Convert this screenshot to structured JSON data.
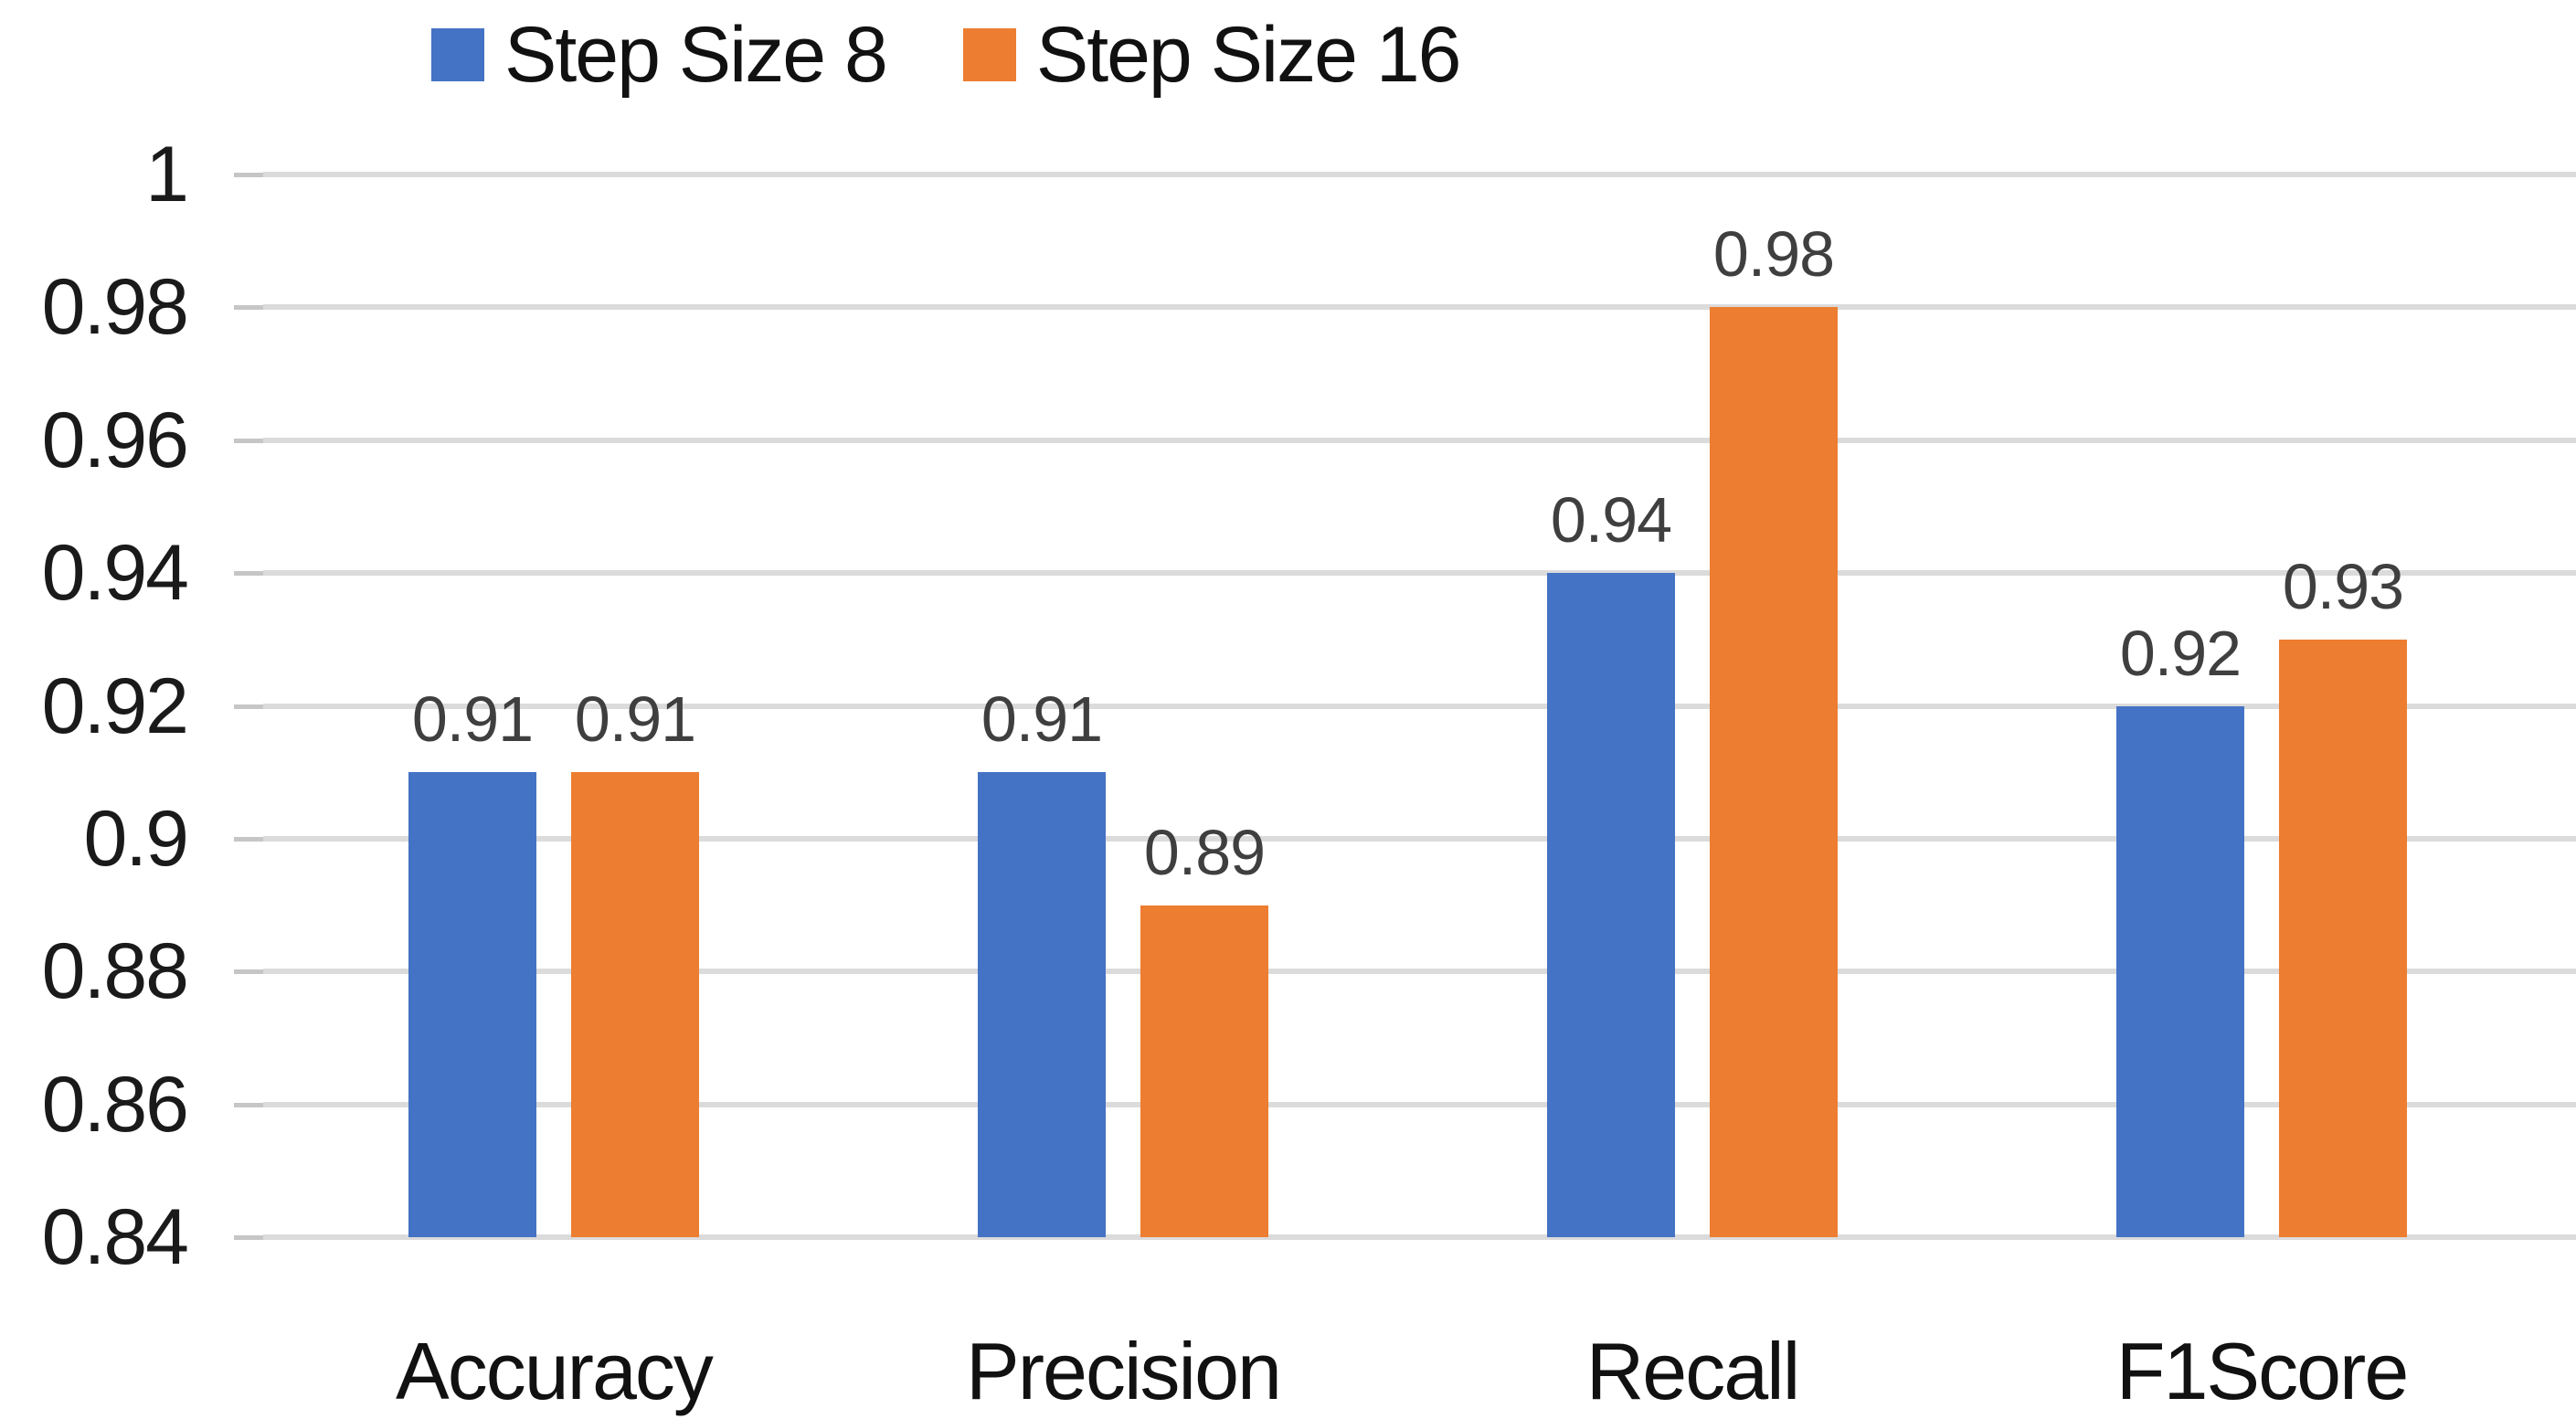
{
  "chart_data": {
    "type": "bar",
    "title": "",
    "categories": [
      "Accuracy",
      "Precision",
      "Recall",
      "F1Score"
    ],
    "series": [
      {
        "name": "Step Size 8",
        "color": "#4472C4",
        "values": [
          0.91,
          0.91,
          0.94,
          0.92
        ]
      },
      {
        "name": "Step Size 16",
        "color": "#ED7D31",
        "values": [
          0.91,
          0.89,
          0.98,
          0.93
        ]
      }
    ],
    "data_labels": [
      "0.91",
      "0.91",
      "0.91",
      "0.89",
      "0.94",
      "0.98",
      "0.92",
      "0.93"
    ],
    "ylim": [
      0.84,
      1.0
    ],
    "ytick_step": 0.02,
    "yticks": [
      "1",
      "0.98",
      "0.96",
      "0.94",
      "0.92",
      "0.9",
      "0.88",
      "0.86",
      "0.84"
    ],
    "grid": "horizontal",
    "legend_position": "top"
  },
  "colors": {
    "gridline": "#DBDBDB",
    "tickmark": "#C6C6C6",
    "y_label": "#1a1a1a",
    "x_label": "#111111",
    "data_label": "#3f3f3f",
    "background": "#ffffff"
  }
}
